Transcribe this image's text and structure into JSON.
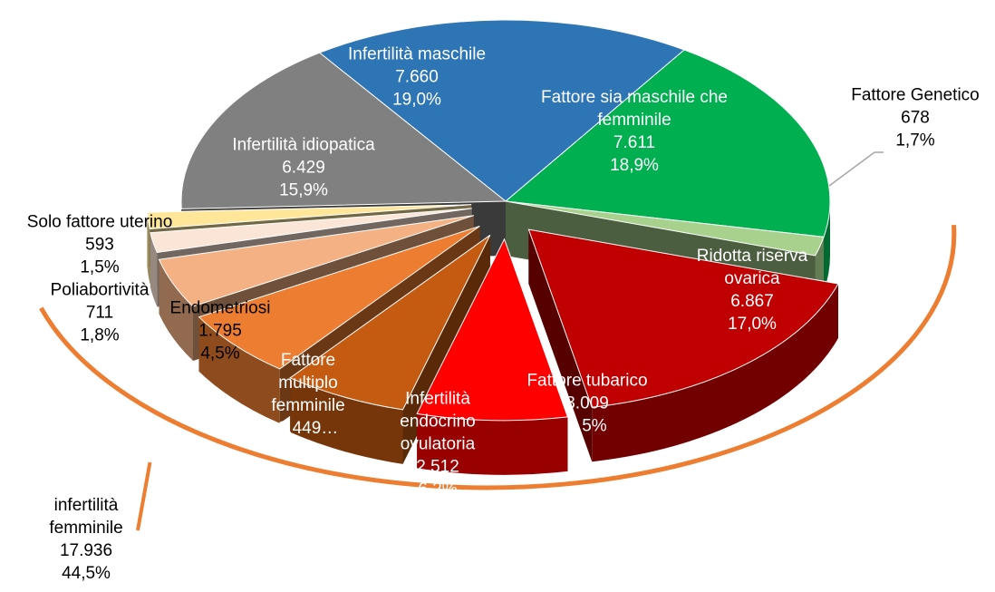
{
  "chart_data": {
    "type": "pie",
    "categories": [
      "Infertilità maschile",
      "Fattore sia maschile che femminile",
      "Fattore Genetico",
      "Ridotta riserva ovarica",
      "Fattore tubarico",
      "Infertilità endocrino ovulatoria",
      "Fattore multiplo femminile",
      "Endometriosi",
      "Poliabortività",
      "Solo fattore uterino",
      "Infertilità idiopatica"
    ],
    "values": [
      7660,
      7611,
      678,
      6867,
      3009,
      2512,
      2449,
      1795,
      711,
      593,
      6429
    ],
    "value_labels": [
      "7.660",
      "7.611",
      "678",
      "6.867",
      "3.009",
      "2.512",
      "2.449…",
      "1.795",
      "711",
      "593",
      "6.429"
    ],
    "percents": [
      19.0,
      18.9,
      1.7,
      17.0,
      7.5,
      6.2,
      null,
      4.5,
      1.8,
      1.5,
      15.9
    ],
    "percent_labels": [
      "19,0%",
      "18,9%",
      "1,7%",
      "17,0%",
      "7,5%",
      "6,2%",
      null,
      "4,5%",
      "1,8%",
      "1,5%",
      "15,9%"
    ],
    "colors": [
      "#2e75b6",
      "#00b050",
      "#a9d18e",
      "#c00000",
      "#ff0000",
      "#c55a11",
      "#ed7d31",
      "#f4b183",
      "#fbe5d6",
      "#ffe699",
      "#808080"
    ],
    "group": {
      "name": "infertilità femminile",
      "value": 17936,
      "value_label": "17.936",
      "percent": 44.5,
      "percent_label": "44,5%",
      "color": "#ed7d31"
    }
  }
}
